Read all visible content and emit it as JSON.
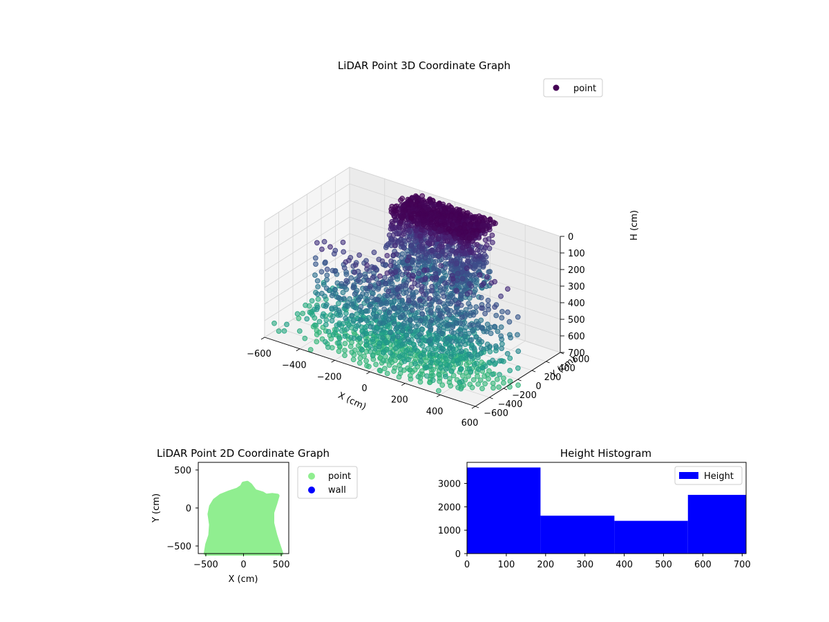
{
  "chart_data": [
    {
      "type": "scatter",
      "title": "LiDAR Point 3D Coordinate Graph",
      "xlabel": "X (cm)",
      "ylabel": "Y (cm)",
      "zlabel": "H (cm)",
      "xlim": [
        -600,
        600
      ],
      "ylim": [
        -600,
        600
      ],
      "zlim": [
        0,
        700
      ],
      "z_inverted": true,
      "x_ticks": [
        "−600",
        "−400",
        "−200",
        "0",
        "200",
        "400",
        "600"
      ],
      "y_ticks": [
        "−600",
        "−400",
        "−200",
        "0",
        "200",
        "400",
        "600"
      ],
      "z_ticks": [
        "0",
        "100",
        "200",
        "300",
        "400",
        "500",
        "600",
        "700"
      ],
      "colormap": "viridis",
      "grid": true,
      "legend_position": "top-right",
      "series": [
        {
          "name": "point",
          "color": "#440154"
        }
      ]
    },
    {
      "type": "scatter",
      "title": "LiDAR Point 2D Coordinate Graph",
      "xlabel": "X (cm)",
      "ylabel": "Y (cm)",
      "xlim": [
        -600,
        600
      ],
      "ylim": [
        -600,
        600
      ],
      "x_ticks": [
        "−500",
        "0",
        "500"
      ],
      "y_ticks": [
        "500",
        "0",
        "−500"
      ],
      "legend_position": "outside-right",
      "series": [
        {
          "name": "point",
          "color": "#90ee90"
        },
        {
          "name": "wall",
          "color": "#0000ff"
        }
      ],
      "point_region_outline": [
        [
          -500,
          -600
        ],
        [
          -480,
          -480
        ],
        [
          -440,
          -360
        ],
        [
          -430,
          -220
        ],
        [
          -450,
          -80
        ],
        [
          -430,
          20
        ],
        [
          -380,
          100
        ],
        [
          -300,
          160
        ],
        [
          -200,
          200
        ],
        [
          -80,
          240
        ],
        [
          -20,
          280
        ],
        [
          0,
          320
        ],
        [
          50,
          330
        ],
        [
          90,
          300
        ],
        [
          150,
          220
        ],
        [
          250,
          190
        ],
        [
          300,
          160
        ],
        [
          380,
          170
        ],
        [
          450,
          160
        ],
        [
          420,
          60
        ],
        [
          380,
          -60
        ],
        [
          380,
          -200
        ],
        [
          420,
          -360
        ],
        [
          460,
          -480
        ],
        [
          500,
          -600
        ]
      ]
    },
    {
      "type": "bar",
      "title": "Height Histogram",
      "xlabel": "",
      "ylabel": "",
      "xlim": [
        0,
        710
      ],
      "ylim": [
        0,
        3900
      ],
      "x_ticks": [
        "0",
        "100",
        "200",
        "300",
        "400",
        "500",
        "600",
        "700"
      ],
      "y_ticks": [
        "0",
        "1000",
        "2000",
        "3000"
      ],
      "legend_position": "top-right",
      "bin_edges": [
        0,
        187,
        375,
        562,
        710
      ],
      "values": [
        3680,
        1620,
        1400,
        2510
      ],
      "series": [
        {
          "name": "Height",
          "color": "#0000ff"
        }
      ]
    }
  ]
}
